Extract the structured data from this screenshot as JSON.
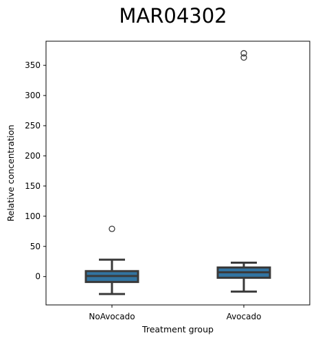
{
  "chart_data": {
    "type": "box",
    "title": "MAR04302",
    "xlabel": "Treatment group",
    "ylabel": "Relative concentration",
    "categories": [
      "NoAvocado",
      "Avocado"
    ],
    "ylim": [
      -47,
      390
    ],
    "yticks": [
      0,
      50,
      100,
      150,
      200,
      250,
      300,
      350
    ],
    "grid": false,
    "legend": "none",
    "box_color": "#3274a1",
    "line_color": "#3a3a3a",
    "boxes": [
      {
        "category": "NoAvocado",
        "whisker_low": -29,
        "q1": -9,
        "median": 1,
        "q3": 9,
        "whisker_high": 28,
        "outliers": [
          79
        ]
      },
      {
        "category": "Avocado",
        "whisker_low": -25,
        "q1": -2,
        "median": 7,
        "q3": 15,
        "whisker_high": 23,
        "outliers": [
          363,
          370
        ]
      }
    ]
  }
}
